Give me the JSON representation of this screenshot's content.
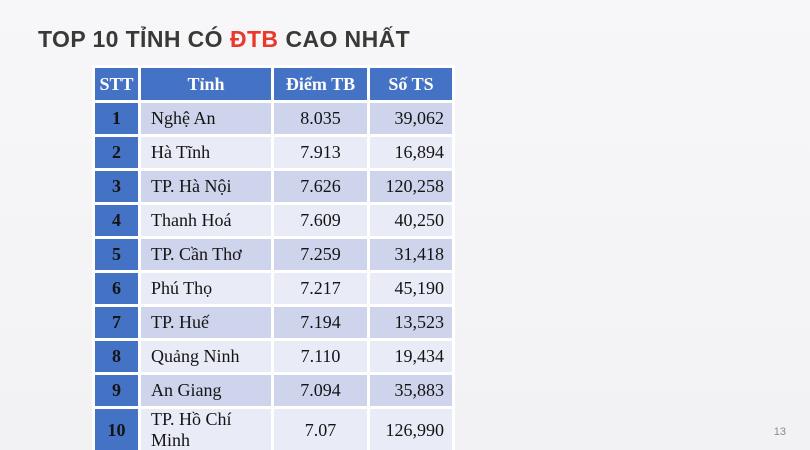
{
  "slide": {
    "title": {
      "prefix": "TOP 10 TỈNH CÓ",
      "highlight": "ĐTB",
      "suffix": "CAO NHẤT"
    },
    "page_number": "13"
  },
  "table": {
    "columns": [
      "STT",
      "Tỉnh",
      "Điểm TB",
      "Số TS"
    ],
    "rows": [
      [
        "1",
        "Nghệ An",
        "8.035",
        "39,062"
      ],
      [
        "2",
        "Hà Tĩnh",
        "7.913",
        "16,894"
      ],
      [
        "3",
        "TP. Hà Nội",
        "7.626",
        "120,258"
      ],
      [
        "4",
        "Thanh Hoá",
        "7.609",
        "40,250"
      ],
      [
        "5",
        "TP. Cần Thơ",
        "7.259",
        "31,418"
      ],
      [
        "6",
        "Phú Thọ",
        "7.217",
        "45,190"
      ],
      [
        "7",
        "TP. Huế",
        "7.194",
        "13,523"
      ],
      [
        "8",
        "Quảng Ninh",
        "7.110",
        "19,434"
      ],
      [
        "9",
        "An Giang",
        "7.094",
        "35,883"
      ],
      [
        "10",
        "TP. Hồ Chí Minh",
        "7.07",
        "126,990"
      ]
    ]
  },
  "colors": {
    "accent_blue": "#4472C4",
    "row_band_dark": "#CDD4EC",
    "row_band_light": "#E9ECF6",
    "title_text": "#3B3838",
    "title_highlight_red": "#E8392B",
    "page_background": "#F5F5F7"
  },
  "chart_data": {
    "type": "table",
    "title": "TOP 10 TỈNH CÓ ĐTB CAO NHẤT",
    "columns": [
      "STT",
      "Tỉnh",
      "Điểm TB",
      "Số TS"
    ],
    "rows": [
      {
        "stt": 1,
        "tinh": "Nghệ An",
        "diem_tb": 8.035,
        "so_ts": 39062
      },
      {
        "stt": 2,
        "tinh": "Hà Tĩnh",
        "diem_tb": 7.913,
        "so_ts": 16894
      },
      {
        "stt": 3,
        "tinh": "TP. Hà Nội",
        "diem_tb": 7.626,
        "so_ts": 120258
      },
      {
        "stt": 4,
        "tinh": "Thanh Hoá",
        "diem_tb": 7.609,
        "so_ts": 40250
      },
      {
        "stt": 5,
        "tinh": "TP. Cần Thơ",
        "diem_tb": 7.259,
        "so_ts": 31418
      },
      {
        "stt": 6,
        "tinh": "Phú Thọ",
        "diem_tb": 7.217,
        "so_ts": 45190
      },
      {
        "stt": 7,
        "tinh": "TP. Huế",
        "diem_tb": 7.194,
        "so_ts": 13523
      },
      {
        "stt": 8,
        "tinh": "Quảng Ninh",
        "diem_tb": 7.11,
        "so_ts": 19434
      },
      {
        "stt": 9,
        "tinh": "An Giang",
        "diem_tb": 7.094,
        "so_ts": 35883
      },
      {
        "stt": 10,
        "tinh": "TP. Hồ Chí Minh",
        "diem_tb": 7.07,
        "so_ts": 126990
      }
    ]
  }
}
